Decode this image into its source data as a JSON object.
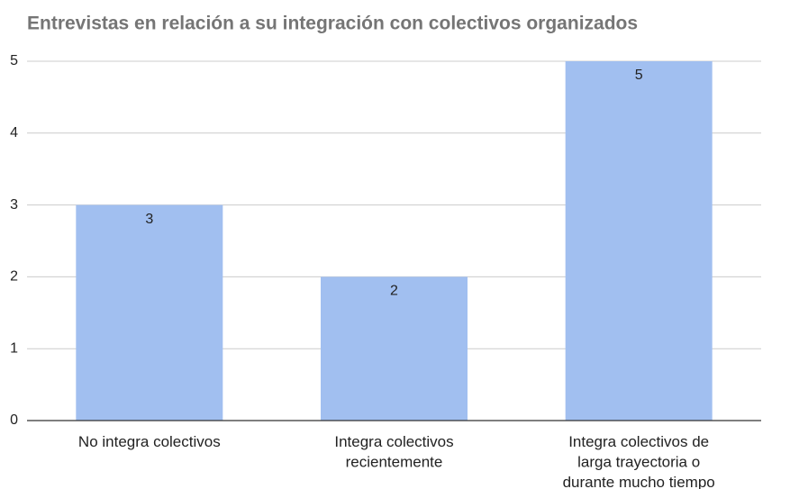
{
  "chart_data": {
    "type": "bar",
    "title": "Entrevistas en relación a su integración con colectivos organizados",
    "categories": [
      "No integra colectivos",
      "Integra colectivos recientemente",
      "Integra colectivos de larga trayectoria o durante mucho tiempo"
    ],
    "values": [
      3,
      2,
      5
    ],
    "color": "#a1bff0",
    "ylim": [
      0,
      5
    ],
    "yticks": [
      0,
      1,
      2,
      3,
      4,
      5
    ],
    "grid": true
  }
}
